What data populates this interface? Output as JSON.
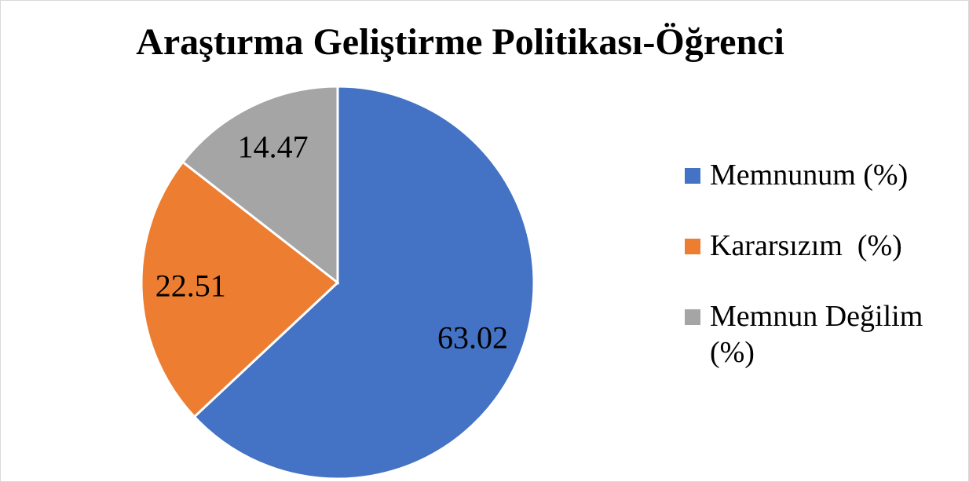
{
  "chart_data": {
    "type": "pie",
    "title": "Araştırma Geliştirme Politikası-Öğrenci",
    "categories": [
      "Memnunum (%)",
      "Kararsızım  (%)",
      "Memnun Değilim (%)"
    ],
    "values": [
      63.02,
      22.51,
      14.47
    ],
    "colors": [
      "#4472c4",
      "#ed7d31",
      "#a5a5a5"
    ],
    "legend": "right"
  }
}
